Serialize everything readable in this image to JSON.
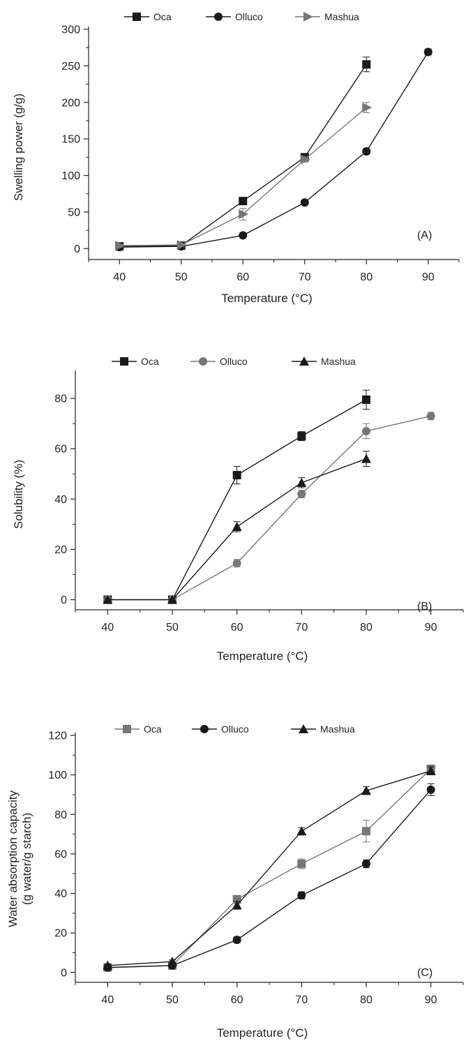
{
  "chart_data": [
    {
      "type": "line",
      "panel_label": "(A)",
      "xlabel": "Temperature (°C)",
      "ylabel": "Swelling power (g/g)",
      "xlim": [
        35,
        95
      ],
      "ylim": [
        -15,
        300
      ],
      "xticks": [
        40,
        50,
        60,
        70,
        80,
        90
      ],
      "yticks": [
        0,
        50,
        100,
        150,
        200,
        250,
        300
      ],
      "legend_position": "top",
      "series": [
        {
          "name": "Oca",
          "marker": "square",
          "color": "#1a1a1a",
          "x": [
            40,
            50,
            60,
            70,
            80
          ],
          "y": [
            3,
            4,
            65,
            125,
            252
          ],
          "err": [
            2,
            2,
            4,
            4,
            10
          ]
        },
        {
          "name": "Olluco",
          "marker": "circle",
          "color": "#1a1a1a",
          "x": [
            40,
            50,
            60,
            70,
            80,
            90
          ],
          "y": [
            2,
            3,
            18,
            63,
            133,
            269
          ],
          "err": [
            2,
            2,
            3,
            3,
            4,
            4
          ]
        },
        {
          "name": "Mashua",
          "marker": "triangle-right",
          "color": "#777777",
          "x": [
            40,
            50,
            60,
            70,
            80
          ],
          "y": [
            4,
            5,
            47,
            122,
            193
          ],
          "err": [
            2,
            2,
            8,
            4,
            7
          ]
        }
      ]
    },
    {
      "type": "line",
      "panel_label": "(B)",
      "xlabel": "Temperature (°C)",
      "ylabel": "Solubility (%)",
      "xlim": [
        35,
        95
      ],
      "ylim": [
        -4,
        90
      ],
      "xticks": [
        40,
        50,
        60,
        70,
        80,
        90
      ],
      "yticks": [
        0,
        20,
        40,
        60,
        80
      ],
      "legend_position": "top",
      "series": [
        {
          "name": "Oca",
          "marker": "square",
          "color": "#1a1a1a",
          "x": [
            40,
            50,
            60,
            70,
            80
          ],
          "y": [
            0,
            0,
            49.5,
            65,
            79.5
          ],
          "err": [
            0.5,
            0.5,
            3.5,
            1.8,
            3.8
          ]
        },
        {
          "name": "Olluco",
          "marker": "circle",
          "color": "#777777",
          "x": [
            40,
            50,
            60,
            70,
            80,
            90
          ],
          "y": [
            0,
            0,
            14.5,
            42,
            67,
            73
          ],
          "err": [
            0.5,
            0.5,
            1.5,
            1.5,
            3,
            1.5
          ]
        },
        {
          "name": "Mashua",
          "marker": "triangle",
          "color": "#1a1a1a",
          "x": [
            40,
            50,
            60,
            70,
            80
          ],
          "y": [
            0,
            0,
            29,
            46.5,
            56
          ],
          "err": [
            0.5,
            0.5,
            2,
            2,
            3
          ]
        }
      ]
    },
    {
      "type": "line",
      "panel_label": "(C)",
      "xlabel": "Temperature (°C)",
      "ylabel_lines": [
        "Water absorption capacity",
        "(g water/g starch)"
      ],
      "xlim": [
        35,
        95
      ],
      "ylim": [
        -5,
        120
      ],
      "xticks": [
        40,
        50,
        60,
        70,
        80,
        90
      ],
      "yticks": [
        0,
        20,
        40,
        60,
        80,
        100,
        120
      ],
      "legend_position": "top",
      "series": [
        {
          "name": "Oca",
          "marker": "square",
          "color": "#777777",
          "x": [
            40,
            50,
            60,
            70,
            80,
            90
          ],
          "y": [
            2.5,
            3.5,
            37,
            55,
            71.5,
            103
          ],
          "err": [
            0.8,
            0.8,
            2,
            2.5,
            5.5,
            2
          ]
        },
        {
          "name": "Olluco",
          "marker": "circle",
          "color": "#1a1a1a",
          "x": [
            40,
            50,
            60,
            70,
            80,
            90
          ],
          "y": [
            2.5,
            3.5,
            16.5,
            39,
            55,
            92.5
          ],
          "err": [
            0.8,
            0.8,
            1.5,
            1.8,
            2,
            3
          ]
        },
        {
          "name": "Mashua",
          "marker": "triangle",
          "color": "#1a1a1a",
          "x": [
            40,
            50,
            60,
            70,
            80,
            90
          ],
          "y": [
            3.5,
            5.5,
            34,
            71.5,
            92,
            102
          ],
          "err": [
            0.8,
            0.8,
            2,
            1.8,
            2,
            2
          ]
        }
      ]
    }
  ]
}
